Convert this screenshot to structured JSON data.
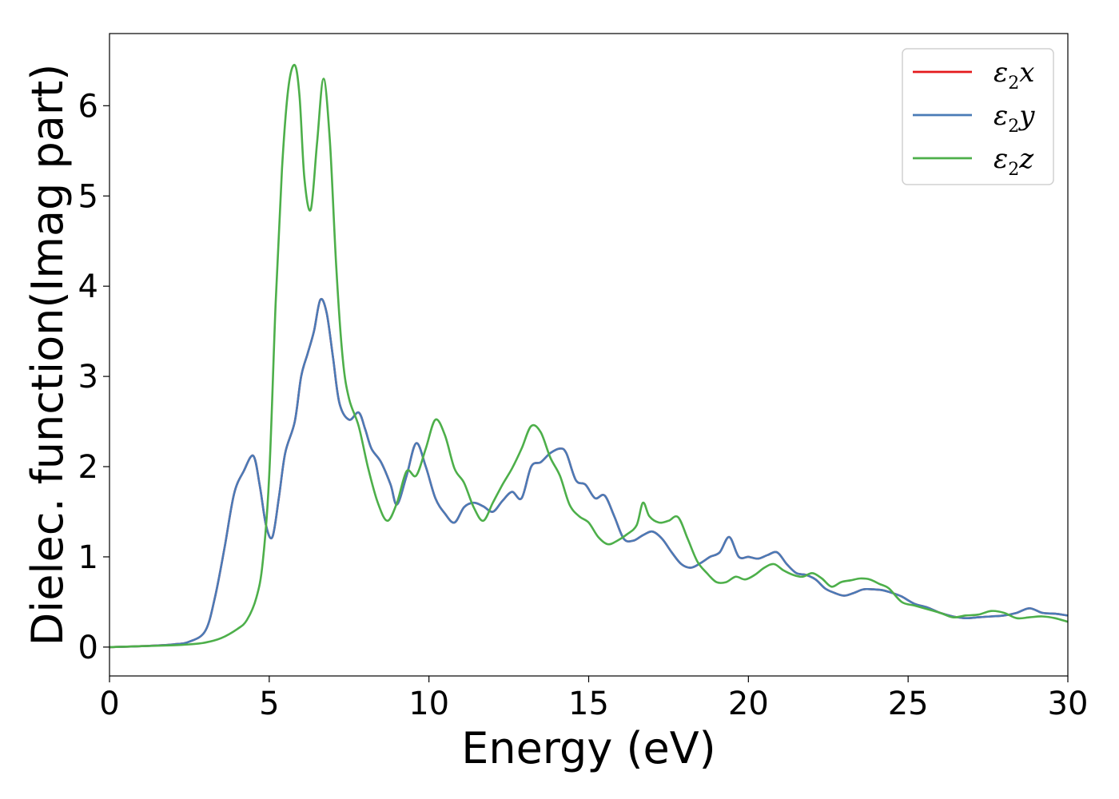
{
  "chart_data": {
    "type": "line",
    "xlabel": "Energy (eV)",
    "ylabel": "Dielec. function(Imag part)",
    "xlim": [
      0,
      30
    ],
    "ylim": [
      -0.32,
      6.8
    ],
    "xticks": [
      "0",
      "5",
      "10",
      "15",
      "20",
      "25",
      "30"
    ],
    "yticks": [
      "0",
      "1",
      "2",
      "3",
      "4",
      "5",
      "6"
    ],
    "grid": false,
    "legend_position": "top-right",
    "series": [
      {
        "name": "ε2x",
        "legend": {
          "base": "ε",
          "sub": "2",
          "suffix": "x"
        },
        "color": "#e41a1c",
        "x": [
          0,
          1,
          2,
          2.5,
          3,
          3.3,
          3.6,
          3.9,
          4.2,
          4.5,
          4.7,
          4.9,
          5.1,
          5.3,
          5.5,
          5.8,
          6.0,
          6.2,
          6.4,
          6.6,
          6.8,
          7.0,
          7.2,
          7.5,
          7.8,
          8.0,
          8.2,
          8.5,
          8.8,
          9.0,
          9.3,
          9.6,
          9.9,
          10.2,
          10.5,
          10.8,
          11.1,
          11.4,
          11.7,
          12.0,
          12.3,
          12.6,
          12.9,
          13.2,
          13.5,
          13.8,
          14.1,
          14.3,
          14.6,
          14.9,
          15.2,
          15.5,
          15.8,
          16.1,
          16.4,
          16.7,
          17.0,
          17.3,
          17.6,
          17.9,
          18.2,
          18.5,
          18.8,
          19.1,
          19.4,
          19.7,
          20.0,
          20.3,
          20.6,
          20.9,
          21.2,
          21.5,
          21.8,
          22.1,
          22.4,
          22.7,
          23.0,
          23.3,
          23.6,
          23.9,
          24.2,
          24.5,
          24.8,
          25.2,
          25.6,
          26.0,
          26.4,
          26.8,
          27.2,
          27.6,
          28.0,
          28.4,
          28.8,
          29.2,
          29.6,
          30
        ],
        "y": [
          0,
          0.01,
          0.03,
          0.06,
          0.18,
          0.55,
          1.1,
          1.7,
          1.95,
          2.12,
          1.8,
          1.35,
          1.22,
          1.65,
          2.15,
          2.5,
          3.0,
          3.25,
          3.5,
          3.85,
          3.7,
          3.2,
          2.7,
          2.52,
          2.6,
          2.42,
          2.2,
          2.05,
          1.8,
          1.58,
          1.9,
          2.26,
          2.0,
          1.65,
          1.48,
          1.38,
          1.55,
          1.6,
          1.56,
          1.5,
          1.62,
          1.72,
          1.65,
          2.0,
          2.05,
          2.15,
          2.2,
          2.15,
          1.85,
          1.8,
          1.65,
          1.68,
          1.45,
          1.2,
          1.18,
          1.24,
          1.28,
          1.2,
          1.05,
          0.92,
          0.88,
          0.93,
          1.0,
          1.05,
          1.22,
          1.0,
          1.0,
          0.98,
          1.02,
          1.05,
          0.92,
          0.82,
          0.8,
          0.75,
          0.65,
          0.6,
          0.57,
          0.6,
          0.64,
          0.64,
          0.63,
          0.6,
          0.56,
          0.48,
          0.44,
          0.38,
          0.34,
          0.32,
          0.33,
          0.34,
          0.35,
          0.38,
          0.43,
          0.38,
          0.37,
          0.35
        ]
      },
      {
        "name": "ε2y",
        "legend": {
          "base": "ε",
          "sub": "2",
          "suffix": "y"
        },
        "color": "#4a7bb7",
        "x": [
          0,
          1,
          2,
          2.5,
          3,
          3.3,
          3.6,
          3.9,
          4.2,
          4.5,
          4.7,
          4.9,
          5.1,
          5.3,
          5.5,
          5.8,
          6.0,
          6.2,
          6.4,
          6.6,
          6.8,
          7.0,
          7.2,
          7.5,
          7.8,
          8.0,
          8.2,
          8.5,
          8.8,
          9.0,
          9.3,
          9.6,
          9.9,
          10.2,
          10.5,
          10.8,
          11.1,
          11.4,
          11.7,
          12.0,
          12.3,
          12.6,
          12.9,
          13.2,
          13.5,
          13.8,
          14.1,
          14.3,
          14.6,
          14.9,
          15.2,
          15.5,
          15.8,
          16.1,
          16.4,
          16.7,
          17.0,
          17.3,
          17.6,
          17.9,
          18.2,
          18.5,
          18.8,
          19.1,
          19.4,
          19.7,
          20.0,
          20.3,
          20.6,
          20.9,
          21.2,
          21.5,
          21.8,
          22.1,
          22.4,
          22.7,
          23.0,
          23.3,
          23.6,
          23.9,
          24.2,
          24.5,
          24.8,
          25.2,
          25.6,
          26.0,
          26.4,
          26.8,
          27.2,
          27.6,
          28.0,
          28.4,
          28.8,
          29.2,
          29.6,
          30
        ],
        "y": [
          0,
          0.01,
          0.03,
          0.06,
          0.18,
          0.55,
          1.1,
          1.7,
          1.95,
          2.12,
          1.8,
          1.35,
          1.22,
          1.65,
          2.15,
          2.5,
          3.0,
          3.25,
          3.5,
          3.85,
          3.7,
          3.2,
          2.7,
          2.52,
          2.6,
          2.42,
          2.2,
          2.05,
          1.8,
          1.58,
          1.9,
          2.26,
          2.0,
          1.65,
          1.48,
          1.38,
          1.55,
          1.6,
          1.56,
          1.5,
          1.62,
          1.72,
          1.65,
          2.0,
          2.05,
          2.15,
          2.2,
          2.15,
          1.85,
          1.8,
          1.65,
          1.68,
          1.45,
          1.2,
          1.18,
          1.24,
          1.28,
          1.2,
          1.05,
          0.92,
          0.88,
          0.93,
          1.0,
          1.05,
          1.22,
          1.0,
          1.0,
          0.98,
          1.02,
          1.05,
          0.92,
          0.82,
          0.8,
          0.75,
          0.65,
          0.6,
          0.57,
          0.6,
          0.64,
          0.64,
          0.63,
          0.6,
          0.56,
          0.48,
          0.44,
          0.38,
          0.34,
          0.32,
          0.33,
          0.34,
          0.35,
          0.38,
          0.43,
          0.38,
          0.37,
          0.35
        ]
      },
      {
        "name": "ε2z",
        "legend": {
          "base": "ε",
          "sub": "2",
          "suffix": "z"
        },
        "color": "#4daf4a",
        "x": [
          0,
          1,
          2,
          2.5,
          3,
          3.5,
          4.0,
          4.3,
          4.6,
          4.8,
          5.0,
          5.2,
          5.4,
          5.6,
          5.8,
          5.95,
          6.1,
          6.3,
          6.5,
          6.7,
          6.9,
          7.1,
          7.3,
          7.5,
          7.8,
          8.1,
          8.4,
          8.7,
          9.0,
          9.3,
          9.6,
          9.9,
          10.2,
          10.5,
          10.8,
          11.1,
          11.4,
          11.7,
          12.0,
          12.3,
          12.6,
          12.9,
          13.2,
          13.5,
          13.8,
          14.1,
          14.4,
          14.7,
          15.0,
          15.3,
          15.6,
          15.9,
          16.2,
          16.5,
          16.7,
          16.9,
          17.2,
          17.5,
          17.8,
          18.1,
          18.4,
          18.7,
          19.0,
          19.3,
          19.6,
          19.9,
          20.2,
          20.5,
          20.8,
          21.1,
          21.4,
          21.7,
          22.0,
          22.3,
          22.6,
          22.9,
          23.2,
          23.5,
          23.8,
          24.1,
          24.4,
          24.8,
          25.2,
          25.6,
          26.0,
          26.4,
          26.8,
          27.2,
          27.6,
          28.0,
          28.4,
          28.8,
          29.2,
          29.6,
          30
        ],
        "y": [
          0,
          0.01,
          0.02,
          0.03,
          0.05,
          0.1,
          0.2,
          0.3,
          0.55,
          0.95,
          1.9,
          3.8,
          5.3,
          6.2,
          6.45,
          6.1,
          5.2,
          4.85,
          5.6,
          6.3,
          5.6,
          4.2,
          3.2,
          2.75,
          2.45,
          1.98,
          1.6,
          1.4,
          1.6,
          1.95,
          1.9,
          2.2,
          2.52,
          2.35,
          1.98,
          1.82,
          1.55,
          1.4,
          1.6,
          1.8,
          1.98,
          2.2,
          2.45,
          2.38,
          2.1,
          1.9,
          1.58,
          1.45,
          1.38,
          1.22,
          1.14,
          1.18,
          1.25,
          1.35,
          1.6,
          1.45,
          1.38,
          1.4,
          1.44,
          1.2,
          0.95,
          0.82,
          0.72,
          0.72,
          0.78,
          0.75,
          0.8,
          0.88,
          0.92,
          0.85,
          0.8,
          0.78,
          0.82,
          0.76,
          0.67,
          0.72,
          0.74,
          0.76,
          0.75,
          0.7,
          0.65,
          0.5,
          0.46,
          0.42,
          0.38,
          0.33,
          0.35,
          0.36,
          0.4,
          0.38,
          0.32,
          0.33,
          0.34,
          0.32,
          0.28
        ]
      }
    ]
  }
}
